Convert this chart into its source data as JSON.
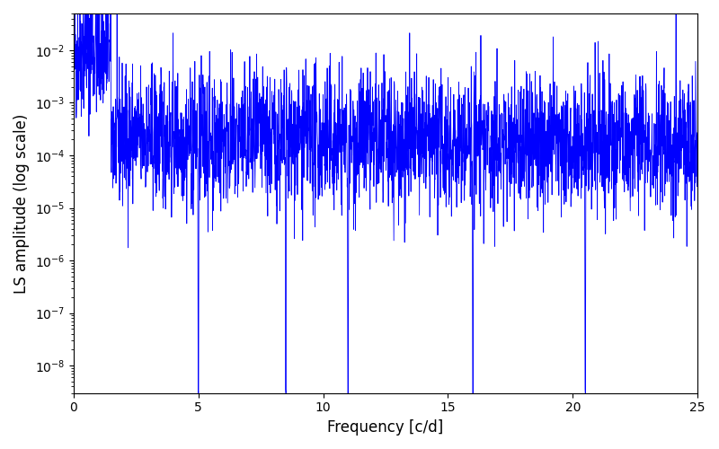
{
  "title": "",
  "xlabel": "Frequency [c/d]",
  "ylabel": "LS amplitude (log scale)",
  "xlim": [
    0,
    25
  ],
  "ylim": [
    3e-09,
    0.05
  ],
  "yscale": "log",
  "line_color": "#0000FF",
  "line_width": 0.6,
  "figsize": [
    8.0,
    5.0
  ],
  "dpi": 100,
  "yticks": [
    1e-08,
    1e-07,
    1e-06,
    1e-05,
    0.0001,
    0.001,
    0.01
  ],
  "xticks": [
    0,
    5,
    10,
    15,
    20,
    25
  ],
  "seed": 42,
  "n_points": 3000,
  "freq_max": 25.0,
  "background_color": "#ffffff"
}
